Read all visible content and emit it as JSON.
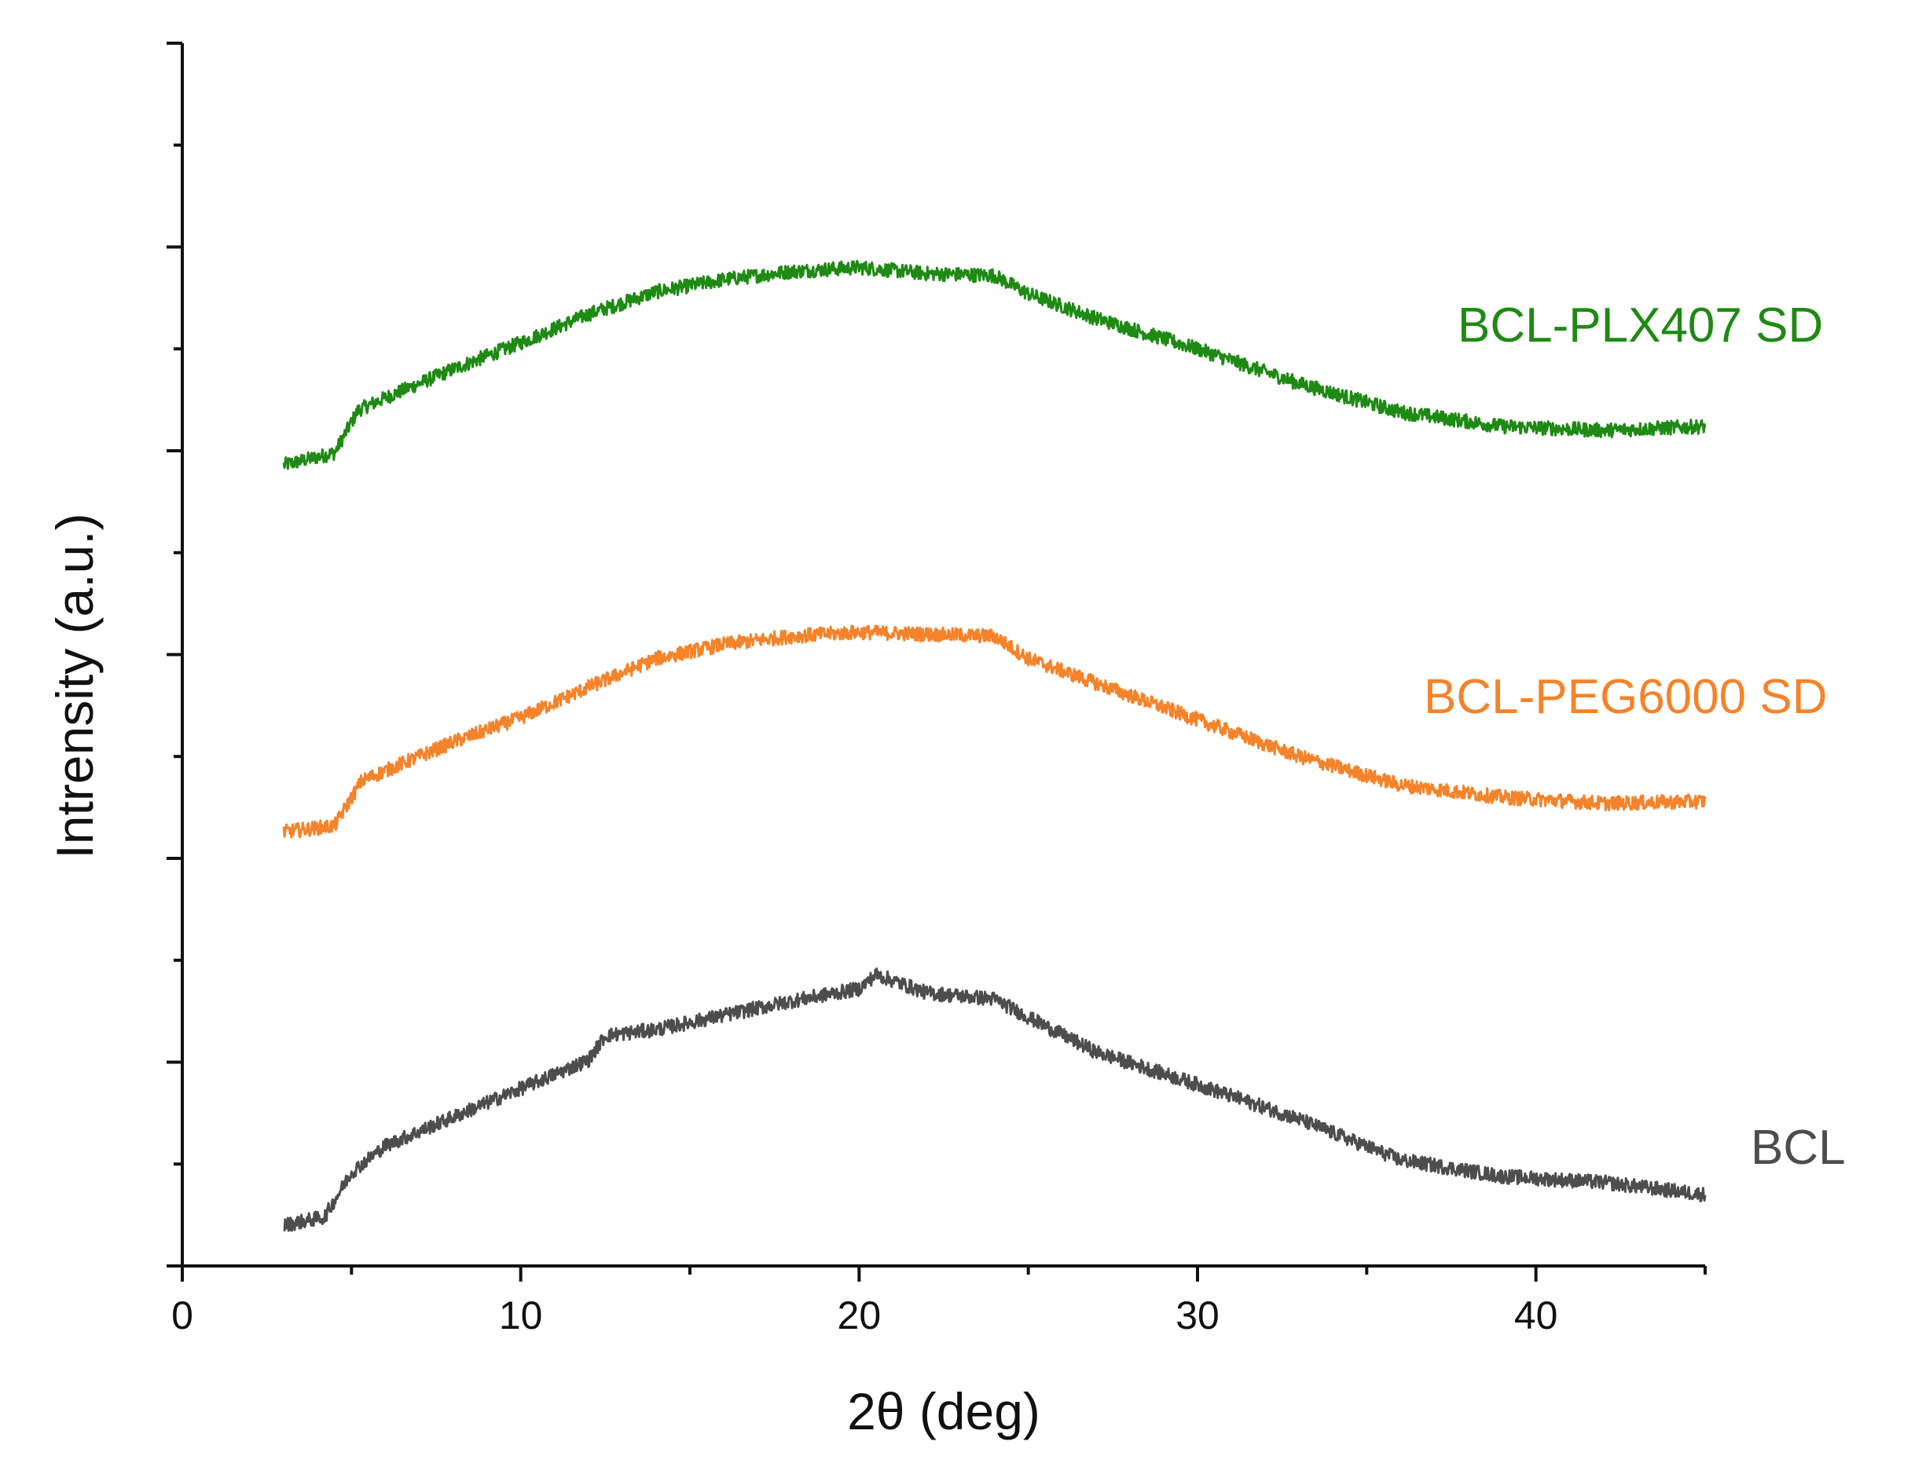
{
  "chart_data": {
    "type": "line",
    "title": "",
    "xlabel": "2θ (deg)",
    "ylabel": "Intrensity (a.u.)",
    "xlim": [
      0,
      45
    ],
    "ylim": [
      0,
      6
    ],
    "x_ticks": [
      0,
      10,
      20,
      30,
      40
    ],
    "x_tick_labels": [
      "0",
      "10",
      "20",
      "30",
      "40"
    ],
    "y_tick_labels": [],
    "y_axis_tick_positions": [
      0,
      0.5,
      1,
      1.5,
      2,
      2.5,
      3,
      3.5,
      4,
      4.5,
      5,
      5.5,
      6
    ],
    "grid": false,
    "legend": "none (series labelled inline at right)",
    "series": [
      {
        "name": "BCL-PLX407 SD",
        "color": "#1e8a14",
        "x": [
          3,
          4.5,
          5.2,
          6,
          8,
          10,
          12,
          14,
          16,
          18,
          20,
          22,
          24,
          25,
          27,
          30,
          33,
          36,
          39,
          42,
          45
        ],
        "y": [
          3.93,
          3.99,
          4.2,
          4.26,
          4.4,
          4.53,
          4.67,
          4.78,
          4.84,
          4.88,
          4.9,
          4.87,
          4.86,
          4.77,
          4.65,
          4.5,
          4.33,
          4.19,
          4.12,
          4.1,
          4.12
        ]
      },
      {
        "name": "BCL-PEG6000 SD",
        "color": "#f5832a",
        "x": [
          3,
          4.5,
          5.3,
          6,
          8,
          10,
          12,
          14,
          16,
          18,
          20,
          22,
          24,
          25,
          27,
          30,
          33,
          36,
          39,
          42,
          45
        ],
        "y": [
          2.13,
          2.16,
          2.38,
          2.43,
          2.57,
          2.69,
          2.84,
          2.98,
          3.05,
          3.09,
          3.11,
          3.1,
          3.09,
          2.98,
          2.86,
          2.68,
          2.5,
          2.36,
          2.3,
          2.27,
          2.28
        ]
      },
      {
        "name": "BCL",
        "color": "#4d4d4d",
        "x": [
          3,
          4.2,
          5,
          6,
          8,
          10,
          12,
          12.5,
          14,
          16,
          18,
          20,
          20.5,
          22,
          24,
          25,
          27,
          30,
          33,
          36,
          39,
          42,
          45
        ],
        "y": [
          0.2,
          0.24,
          0.46,
          0.59,
          0.73,
          0.87,
          1.01,
          1.13,
          1.16,
          1.23,
          1.3,
          1.36,
          1.43,
          1.34,
          1.31,
          1.22,
          1.05,
          0.89,
          0.72,
          0.52,
          0.44,
          0.41,
          0.35
        ]
      }
    ]
  }
}
